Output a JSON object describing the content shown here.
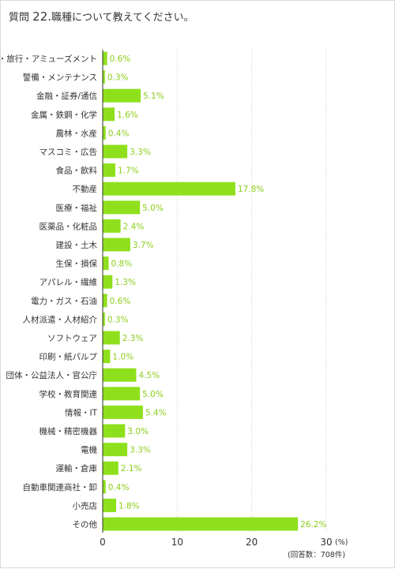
{
  "title": {
    "prefix": "質問",
    "number": "22.",
    "text": "職種について教えてください。"
  },
  "colors": {
    "bar": "#8fe01c",
    "value_label": "#8ccd1a",
    "grid": "#cccccc"
  },
  "chart_data": {
    "type": "bar",
    "orientation": "horizontal",
    "categories": [
      "ホテル・旅行・アミューズメント",
      "警備・メンテナンス",
      "金融・証券/通信",
      "金属・鉄鋼・化学",
      "農林・水産",
      "マスコミ・広告",
      "食品・飲料",
      "不動産",
      "医療・福祉",
      "医薬品・化粧品",
      "建設・土木",
      "生保・損保",
      "アパレル・繊維",
      "電力・ガス・石油",
      "人材派遣・人材紹介",
      "ソフトウェア",
      "印刷・紙パルプ",
      "団体・公益法人・官公庁",
      "学校・教育関連",
      "情報・IT",
      "機械・精密機器",
      "電機",
      "運輸・倉庫",
      "自動車関連商社・卸",
      "小売店",
      "その他"
    ],
    "values": [
      0.6,
      0.3,
      5.1,
      1.6,
      0.4,
      3.3,
      1.7,
      17.8,
      5.0,
      2.4,
      3.7,
      0.8,
      1.3,
      0.6,
      0.3,
      2.3,
      1.0,
      4.5,
      5.0,
      5.4,
      3.0,
      3.3,
      2.1,
      0.4,
      1.8,
      26.2
    ],
    "value_labels": [
      "0.6%",
      "0.3%",
      "5.1%",
      "1.6%",
      "0.4%",
      "3.3%",
      "1.7%",
      "17.8%",
      "5.0%",
      "2.4%",
      "3.7%",
      "0.8%",
      "1.3%",
      "0.6%",
      "0.3%",
      "2.3%",
      "1.0%",
      "4.5%",
      "5.0%",
      "5.4%",
      "3.0%",
      "3.3%",
      "2.1%",
      "0.4%",
      "1.8%",
      "26.2%"
    ],
    "xlim": [
      0,
      30
    ],
    "xticks": [
      0,
      10,
      20,
      30
    ],
    "xticks_labels": [
      "0",
      "10",
      "20",
      "30"
    ],
    "unit": "(%)",
    "note": "(回答数：708件)",
    "grid": true
  }
}
